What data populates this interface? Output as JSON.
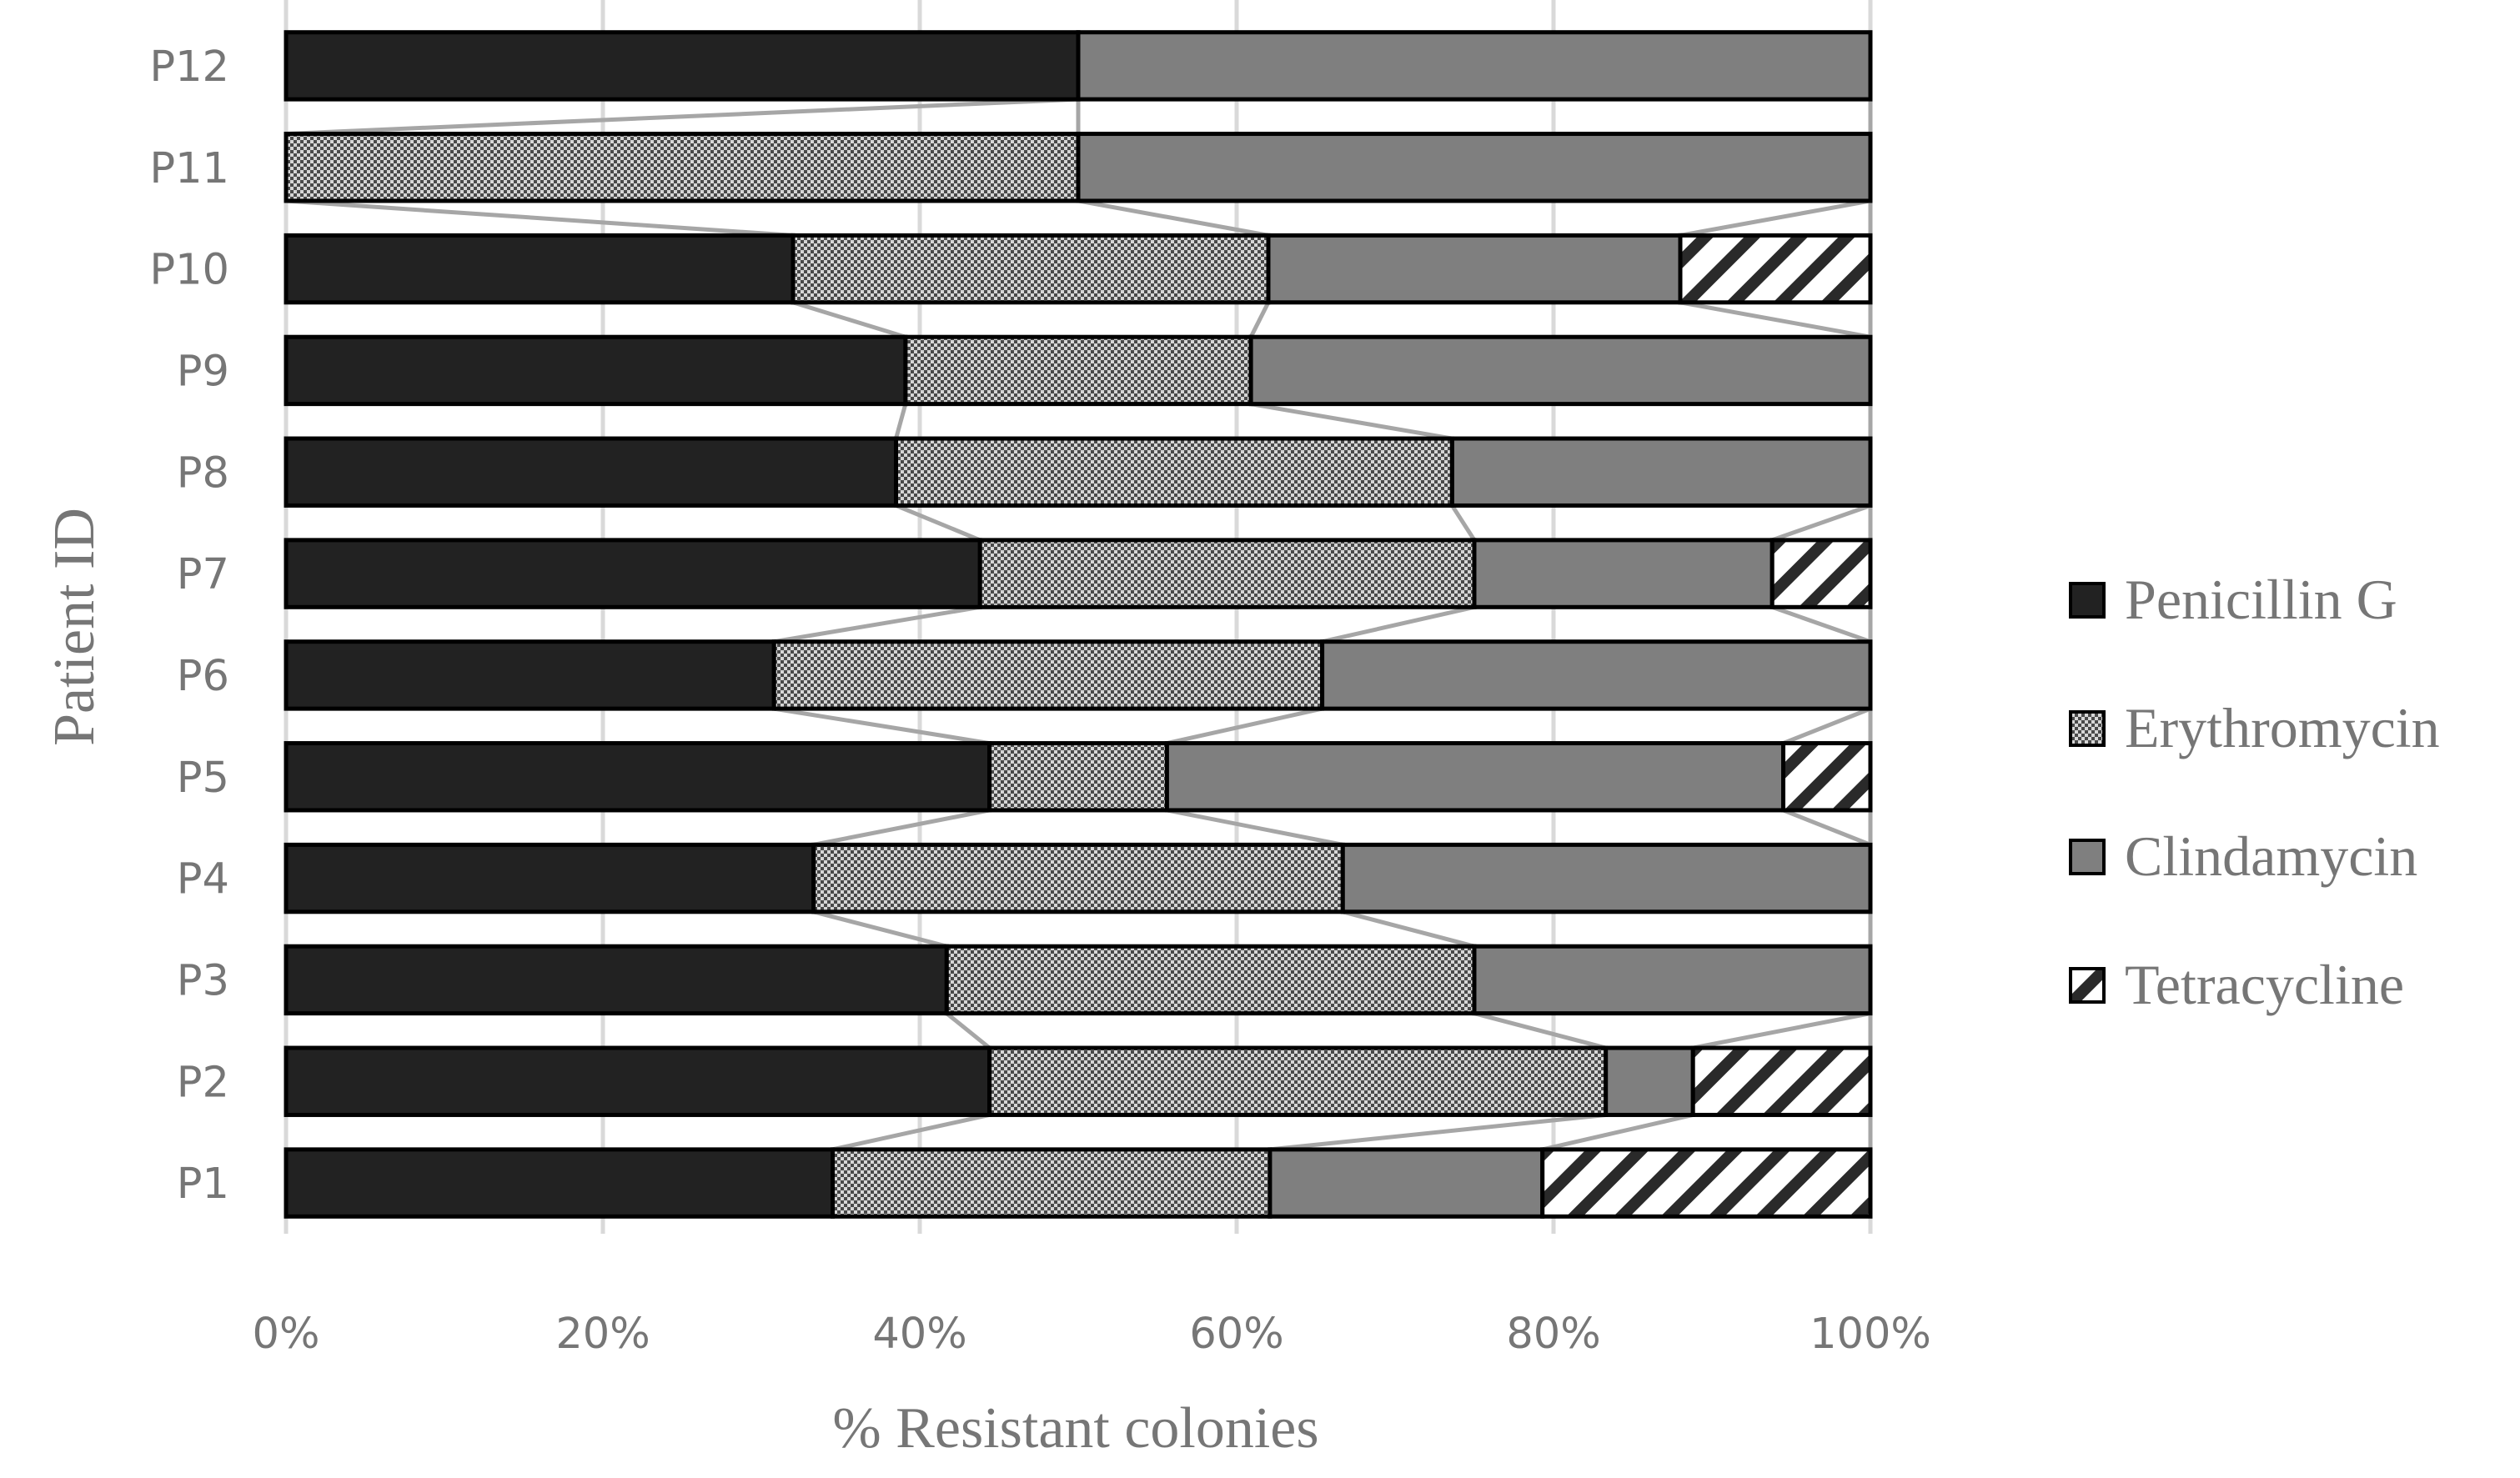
{
  "chart_data": {
    "type": "bar",
    "orientation": "horizontal",
    "stacked": "100%",
    "ylabel": "Patient ID",
    "xlabel": "% Resistant colonies",
    "categories": [
      "P1",
      "P2",
      "P3",
      "P4",
      "P5",
      "P6",
      "P7",
      "P8",
      "P9",
      "P10",
      "P11",
      "P12"
    ],
    "x_ticks": [
      "0%",
      "20%",
      "40%",
      "60%",
      "80%",
      "100%"
    ],
    "xlim": [
      0,
      100
    ],
    "grid": "vertical",
    "legend_position": "right",
    "series_lines": true,
    "series": [
      {
        "name": "Penicillin G",
        "fill": "#222222",
        "pattern": "solid-dark",
        "values": [
          34.5,
          44.4,
          41.7,
          33.3,
          44.4,
          30.8,
          43.8,
          38.5,
          39.1,
          32.0,
          0,
          50.0
        ]
      },
      {
        "name": "Erythromycin",
        "fill": "#bdbdbd",
        "pattern": "checker",
        "values": [
          27.6,
          38.9,
          33.3,
          33.4,
          11.2,
          34.6,
          31.2,
          35.1,
          21.8,
          30.0,
          50.0,
          0
        ]
      },
      {
        "name": "Clindamycin",
        "fill": "#7f7f7f",
        "pattern": "solid-grey",
        "values": [
          17.2,
          5.5,
          25.0,
          33.3,
          38.9,
          34.6,
          18.8,
          26.4,
          39.1,
          26.0,
          50.0,
          50.0
        ]
      },
      {
        "name": "Tetracycline",
        "fill": "#ffffff",
        "pattern": "diagonal",
        "values": [
          20.7,
          11.2,
          0,
          0,
          5.5,
          0,
          6.2,
          0,
          0,
          12.0,
          0,
          0
        ]
      }
    ]
  }
}
